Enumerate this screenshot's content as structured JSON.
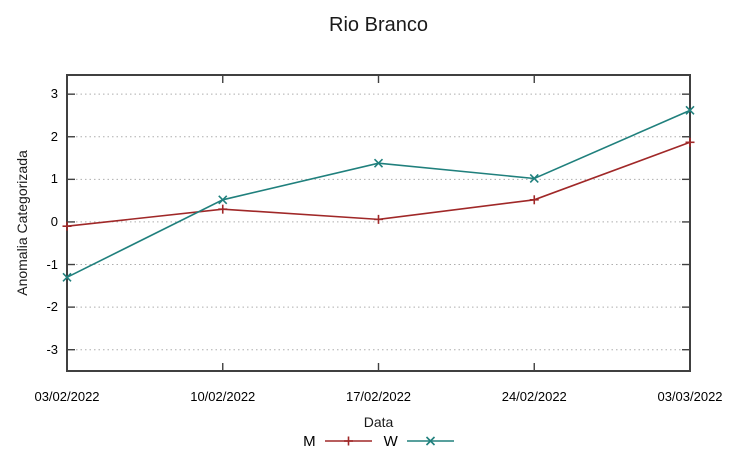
{
  "chart_data": {
    "type": "line",
    "title": "Rio Branco",
    "xlabel": "Data",
    "ylabel": "Anomalia Categorizada",
    "categories": [
      "03/02/2022",
      "10/02/2022",
      "17/02/2022",
      "24/02/2022",
      "03/03/2022"
    ],
    "series": [
      {
        "name": "M",
        "marker": "plus",
        "color": "#a02828",
        "values": [
          -0.1,
          0.3,
          0.06,
          0.52,
          1.87
        ]
      },
      {
        "name": "W",
        "marker": "cross",
        "color": "#20807d",
        "values": [
          -1.3,
          0.52,
          1.38,
          1.02,
          2.62
        ]
      }
    ],
    "yticks": [
      -3,
      -2,
      -1,
      0,
      1,
      2,
      3
    ],
    "ylim": [
      -3.5,
      3.45
    ],
    "grid": "horizontal-dotted",
    "legend_position": "bottom-center",
    "colors": {
      "border": "#404040",
      "gridline": "#aeaeae",
      "text": "#000000"
    }
  }
}
